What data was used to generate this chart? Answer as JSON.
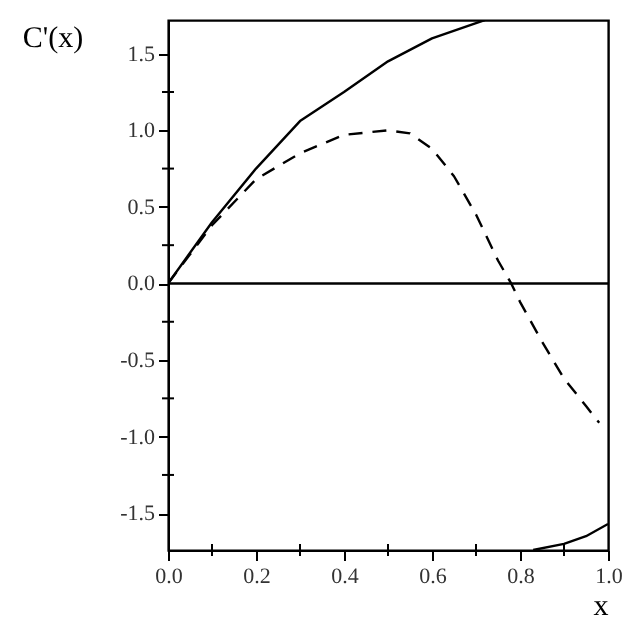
{
  "chart_data": {
    "type": "line",
    "xlabel": "x",
    "ylabel": "C'(x)",
    "xlim": [
      0,
      1
    ],
    "ylim": [
      -1.74,
      1.72
    ],
    "xticks": [
      {
        "value": 0,
        "label": "0.0"
      },
      {
        "value": 0.1,
        "label": null
      },
      {
        "value": 0.2,
        "label": "0.2"
      },
      {
        "value": 0.3,
        "label": null
      },
      {
        "value": 0.4,
        "label": "0.4"
      },
      {
        "value": 0.5,
        "label": null
      },
      {
        "value": 0.6,
        "label": "0.6"
      },
      {
        "value": 0.7,
        "label": null
      },
      {
        "value": 0.8,
        "label": "0.8"
      },
      {
        "value": 0.9,
        "label": null
      },
      {
        "value": 1,
        "label": "1.0"
      }
    ],
    "yticks": [
      {
        "value": -1.5,
        "label": "-1.5"
      },
      {
        "value": -1.25,
        "label": null
      },
      {
        "value": -1,
        "label": "-1.0"
      },
      {
        "value": -0.75,
        "label": null
      },
      {
        "value": -0.5,
        "label": "-0.5"
      },
      {
        "value": -0.25,
        "label": null
      },
      {
        "value": 0,
        "label": "0.0"
      },
      {
        "value": 0.25,
        "label": null
      },
      {
        "value": 0.5,
        "label": "0.5"
      },
      {
        "value": 0.75,
        "label": null
      },
      {
        "value": 1,
        "label": "1.0"
      },
      {
        "value": 1.25,
        "label": null
      },
      {
        "value": 1.5,
        "label": "1.5"
      }
    ],
    "series": [
      {
        "color": "#000000",
        "line_style": "solid",
        "x": [
          0,
          0.1,
          0.2,
          0.3,
          0.4,
          0.5,
          0.6,
          0.7,
          0.72,
          0.77,
          0.83,
          0.9,
          0.95,
          1
        ],
        "values": [
          0,
          0.4,
          0.75,
          1.06,
          1.25,
          1.45,
          1.6,
          1.7,
          1.72,
          null,
          -1.74,
          -1.7,
          -1.65,
          -1.57
        ]
      },
      {
        "color": "#000000",
        "line_style": "dashed",
        "x": [
          0,
          0.1,
          0.2,
          0.3,
          0.4,
          0.5,
          0.55,
          0.6,
          0.65,
          0.7,
          0.75,
          0.78,
          0.8,
          0.85,
          0.9,
          0.95,
          0.98
        ],
        "values": [
          0,
          0.38,
          0.68,
          0.85,
          0.97,
          1.0,
          0.98,
          0.88,
          0.7,
          0.45,
          0.15,
          0,
          -0.12,
          -0.38,
          -0.62,
          -0.8,
          -0.91
        ]
      }
    ],
    "ref_lines": [
      {
        "axis": "y",
        "value": 0,
        "color": "#000000"
      }
    ],
    "grid": false,
    "marker": "none"
  }
}
